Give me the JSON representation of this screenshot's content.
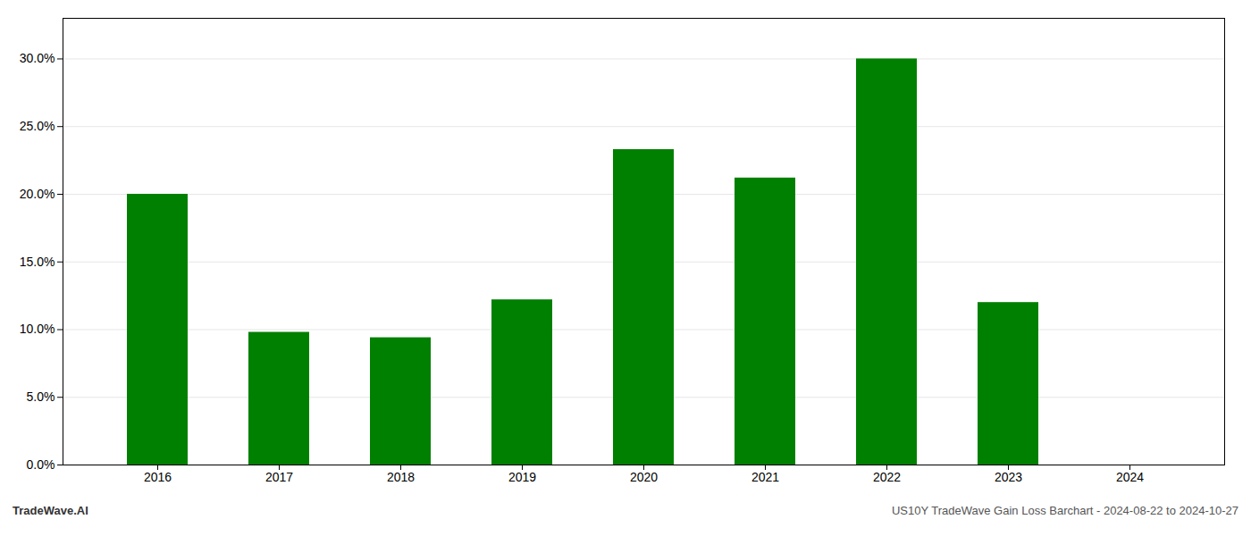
{
  "chart_data": {
    "type": "bar",
    "categories": [
      "2016",
      "2017",
      "2018",
      "2019",
      "2020",
      "2021",
      "2022",
      "2023",
      "2024"
    ],
    "values": [
      0.2,
      0.098,
      0.094,
      0.122,
      0.233,
      0.212,
      0.3,
      0.12,
      0.0
    ],
    "color": "#008000",
    "ylim": [
      0,
      0.33
    ],
    "yticks": [
      {
        "value": 0.0,
        "label": "0.0%"
      },
      {
        "value": 0.05,
        "label": "5.0%"
      },
      {
        "value": 0.1,
        "label": "10.0%"
      },
      {
        "value": 0.15,
        "label": "15.0%"
      },
      {
        "value": 0.2,
        "label": "20.0%"
      },
      {
        "value": 0.25,
        "label": "25.0%"
      },
      {
        "value": 0.3,
        "label": "30.0%"
      }
    ],
    "grid": true,
    "annotations": [
      "TradeWave.AI",
      "US10Y TradeWave Gain Loss Barchart - 2024-08-22 to 2024-10-27"
    ]
  }
}
